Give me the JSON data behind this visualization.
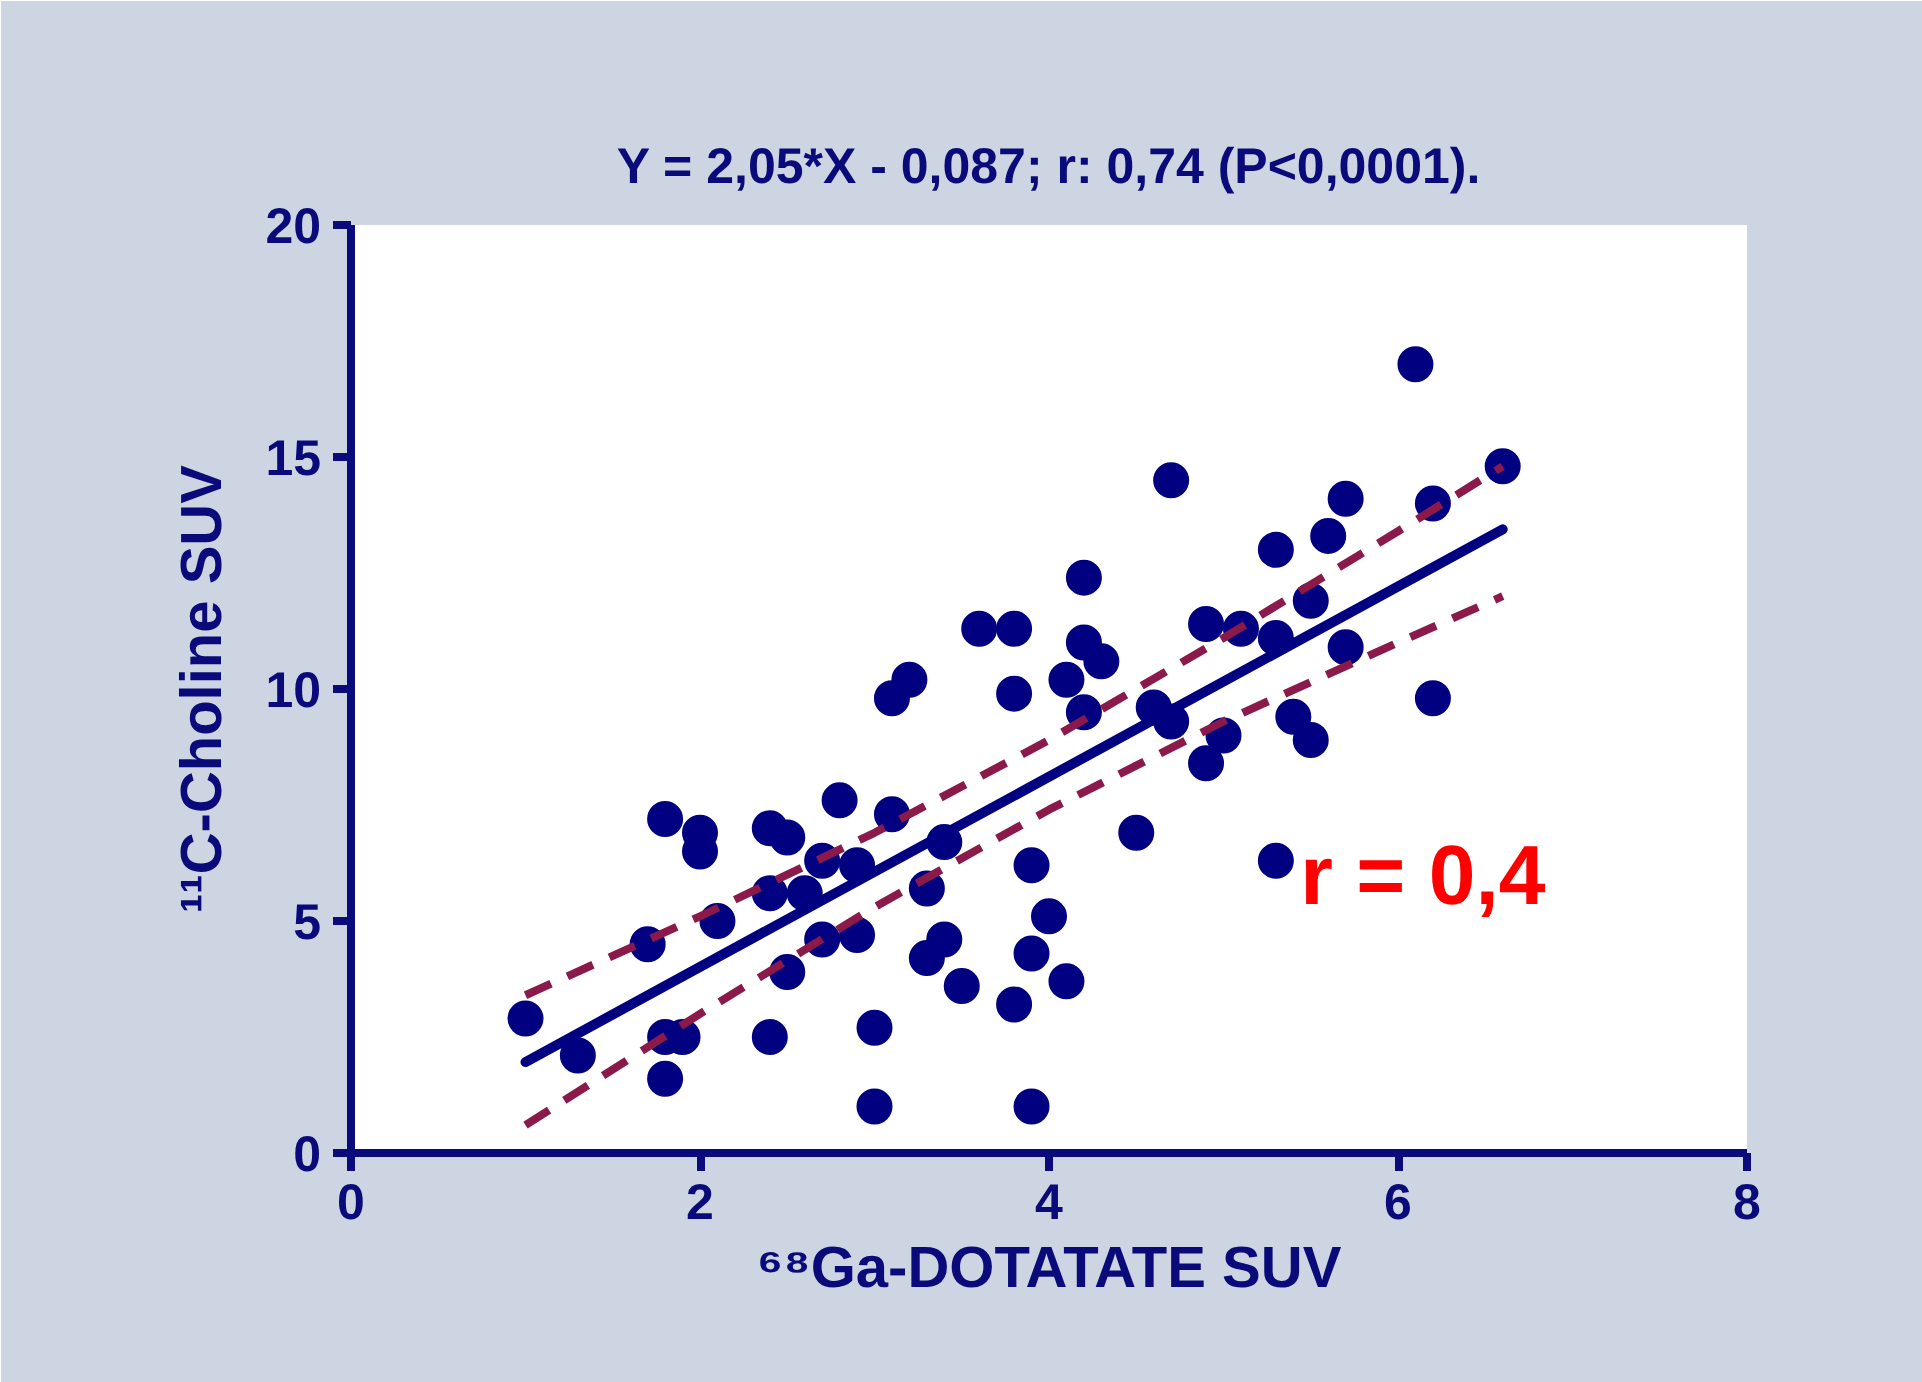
{
  "chart_data": {
    "type": "scatter",
    "title": "Y = 2,05*X - 0,087; r: 0,74 (P<0,0001).",
    "xlabel": "⁶⁸Ga-DOTATATE SUV",
    "ylabel": "¹¹C-Choline SUV",
    "annotations": [
      "r = 0,4"
    ],
    "xlim": [
      0,
      8
    ],
    "ylim": [
      0,
      20
    ],
    "xticks": [
      0,
      2,
      4,
      6,
      8
    ],
    "yticks": [
      0,
      5,
      10,
      15,
      20
    ],
    "grid": false,
    "series": [
      {
        "color": "#000080",
        "marker": "circle",
        "x": [
          1.0,
          1.3,
          1.7,
          1.8,
          1.8,
          1.8,
          1.9,
          2.0,
          2.0,
          2.1,
          2.4,
          2.4,
          2.4,
          2.5,
          2.5,
          2.6,
          2.7,
          2.7,
          2.8,
          2.9,
          2.9,
          3.0,
          3.0,
          3.1,
          3.1,
          3.2,
          3.3,
          3.3,
          3.4,
          3.4,
          3.5,
          3.6,
          3.8,
          3.8,
          3.8,
          3.9,
          3.9,
          3.9,
          4.0,
          4.1,
          4.1,
          4.2,
          4.2,
          4.2,
          4.3,
          4.5,
          4.6,
          4.7,
          4.7,
          4.9,
          4.9,
          5.0,
          5.1,
          5.3,
          5.3,
          5.3,
          5.4,
          5.5,
          5.5,
          5.6,
          5.7,
          5.7,
          6.1,
          6.2,
          6.2,
          6.6
        ],
        "values": [
          2.9,
          2.1,
          4.5,
          7.2,
          2.5,
          1.6,
          2.5,
          6.9,
          6.5,
          5.0,
          2.5,
          7.0,
          5.6,
          6.8,
          3.9,
          5.6,
          6.3,
          4.6,
          7.6,
          6.2,
          4.7,
          2.7,
          1.0,
          7.3,
          9.8,
          10.2,
          5.7,
          4.2,
          6.7,
          4.6,
          3.6,
          11.3,
          11.3,
          9.9,
          3.2,
          6.2,
          4.3,
          1.0,
          5.1,
          3.7,
          10.2,
          12.4,
          11.0,
          9.5,
          10.6,
          6.9,
          9.6,
          14.5,
          9.3,
          11.4,
          8.4,
          9.0,
          11.3,
          13.0,
          11.1,
          6.3,
          9.4,
          11.9,
          8.9,
          13.3,
          14.1,
          10.9,
          17.0,
          14.0,
          9.8,
          14.8
        ]
      },
      {
        "type": "line",
        "color": "#000080",
        "line_style": "solid",
        "x": [
          1,
          6.6
        ],
        "values": [
          1.96,
          13.44
        ]
      },
      {
        "type": "line",
        "color": "#8b1a4a",
        "line_style": "dashed",
        "x": [
          1,
          2,
          3,
          4,
          5,
          6,
          6.6
        ],
        "values": [
          3.4,
          5.1,
          6.9,
          8.9,
          11.1,
          13.4,
          14.8
        ]
      },
      {
        "type": "line",
        "color": "#8b1a4a",
        "line_style": "dashed",
        "x": [
          1,
          2,
          3,
          4,
          5,
          6,
          6.6
        ],
        "values": [
          0.6,
          3.0,
          5.3,
          7.4,
          9.3,
          11.0,
          12.0
        ]
      }
    ]
  }
}
